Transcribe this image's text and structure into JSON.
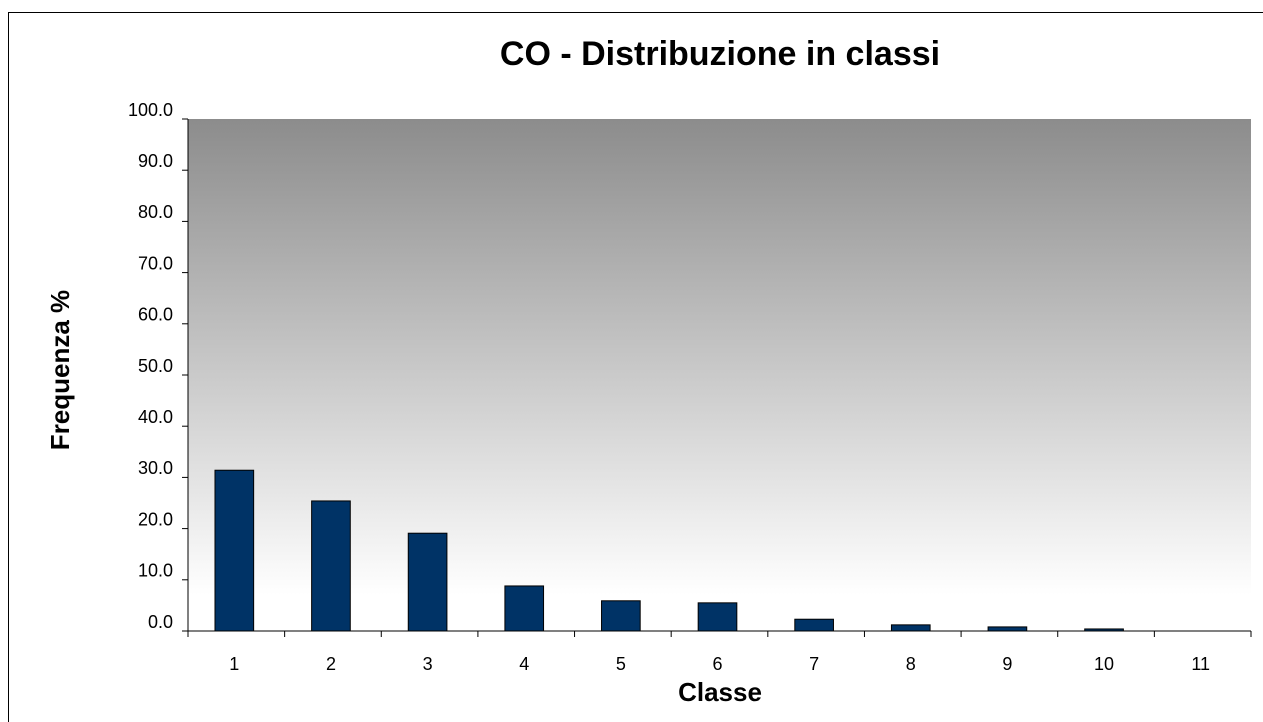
{
  "chart_data": {
    "type": "bar",
    "title": "CO - Distribuzione in classi",
    "x_label": "Classe",
    "y_label": "Frequenza %",
    "categories": [
      "1",
      "2",
      "3",
      "4",
      "5",
      "6",
      "7",
      "8",
      "9",
      "10",
      "11"
    ],
    "values": [
      31.4,
      25.4,
      19.1,
      8.8,
      5.9,
      5.5,
      2.3,
      1.2,
      0.8,
      0.4,
      0
    ],
    "color": "#003366",
    "ylim": [
      0,
      100
    ],
    "yticks": [
      {
        "value": 0,
        "label": "0.0"
      },
      {
        "value": 10,
        "label": "10.0"
      },
      {
        "value": 20,
        "label": "20.0"
      },
      {
        "value": 30,
        "label": "30.0"
      },
      {
        "value": 40,
        "label": "40.0"
      },
      {
        "value": 50,
        "label": "50.0"
      },
      {
        "value": 60,
        "label": "60.0"
      },
      {
        "value": 70,
        "label": "70.0"
      },
      {
        "value": 80,
        "label": "80.0"
      },
      {
        "value": 90,
        "label": "90.0"
      },
      {
        "value": 100,
        "label": "100.0"
      }
    ],
    "grid": false
  }
}
